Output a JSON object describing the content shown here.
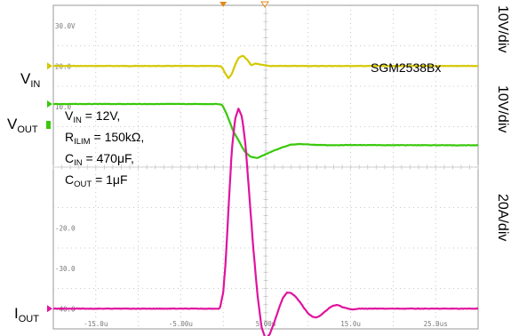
{
  "chart_data": {
    "type": "line",
    "title": "",
    "part_number": "SGM2538Bx",
    "conditions": {
      "vin": {
        "sym": "V",
        "sub": "IN",
        "text": " = 12V,"
      },
      "rilim": {
        "sym": "R",
        "sub": "ILIM",
        "text": " = 150kΩ,"
      },
      "cin": {
        "sym": "C",
        "sub": "IN",
        "text": " = 470μF,"
      },
      "cout": {
        "sym": "C",
        "sub": "OUT",
        "text": " = 1μF"
      }
    },
    "channel_labels": {
      "vin": {
        "sym": "V",
        "sub": "IN"
      },
      "vout": {
        "sym": "V",
        "sub": "OUT"
      },
      "iout": {
        "sym": "I",
        "sub": "OUT"
      }
    },
    "scales": [
      "10V/div",
      "10V/div",
      "20A/div"
    ],
    "x_unit": "us",
    "xlim": [
      -20.0,
      30.0
    ],
    "ylim": [
      -45.0,
      35.0
    ],
    "x_ticks": [
      {
        "value": -15,
        "label": "-15.0u"
      },
      {
        "value": -5,
        "label": "-5.00u"
      },
      {
        "value": 5,
        "label": "5.00u"
      },
      {
        "value": 15,
        "label": "15.0u"
      },
      {
        "value": 25,
        "label": "25.0us"
      }
    ],
    "y_ticks": [
      {
        "value": 30,
        "label": "30.0V"
      },
      {
        "value": 20,
        "label": "20.0"
      },
      {
        "value": 10,
        "label": "10.0"
      },
      {
        "value": -20,
        "label": "-20.0"
      },
      {
        "value": -30,
        "label": "-30.0"
      },
      {
        "value": -40,
        "label": "-40.0"
      }
    ],
    "series": [
      {
        "name": "",
        "color": "#d4c800",
        "x": [
          -20,
          -0.6,
          -0.2,
          0.3,
          0.6,
          1.0,
          1.4,
          1.8,
          2.3,
          2.8,
          3.3,
          3.8,
          4.5,
          5.5,
          30
        ],
        "y": [
          20,
          20,
          19.9,
          18.0,
          17.0,
          18.0,
          20.3,
          22.0,
          22.6,
          21.6,
          20.2,
          20.6,
          20.3,
          20,
          20
        ]
      },
      {
        "name": "",
        "color": "#39c80a",
        "x": [
          -20,
          -0.5,
          -0.1,
          0.3,
          0.7,
          1.2,
          1.8,
          2.5,
          3.2,
          4.0,
          5.0,
          6.0,
          7.0,
          8.0,
          9.0,
          10.0,
          11.0,
          12.0,
          13.0,
          14.0,
          30
        ],
        "y": [
          10.6,
          10.6,
          10.3,
          8.6,
          6.5,
          3.8,
          1.6,
          -1.1,
          -2.4,
          -2.8,
          -1.8,
          -0.9,
          -0.1,
          0.6,
          0.7,
          0.6,
          0.5,
          0.45,
          0.4,
          0.45,
          0.4
        ]
      },
      {
        "name": "",
        "color": "#e0139e",
        "x": [
          -20,
          -0.4,
          0.0,
          0.3,
          0.6,
          1.0,
          1.4,
          1.8,
          2.2,
          2.6,
          3.0,
          3.5,
          4.0,
          4.5,
          5.0,
          5.5,
          6.0,
          6.5,
          7.0,
          7.5,
          8.0,
          8.5,
          9.0,
          9.5,
          10.0,
          10.5,
          11.0,
          11.5,
          12.0,
          12.5,
          13.0,
          13.5,
          14.0,
          15.0,
          16.0,
          30
        ],
        "y": [
          -40,
          -40,
          -36,
          -28,
          -16,
          -1,
          7,
          9.5,
          7.5,
          1,
          -10,
          -24,
          -36,
          -44.5,
          -47.5,
          -46.2,
          -43.4,
          -40.3,
          -37.4,
          -36.0,
          -36.1,
          -37.0,
          -38.3,
          -39.8,
          -41.2,
          -42.0,
          -42.2,
          -41.6,
          -40.7,
          -39.8,
          -39.2,
          -39.1,
          -39.6,
          -40.2,
          -40.0,
          -40.0
        ]
      }
    ]
  }
}
